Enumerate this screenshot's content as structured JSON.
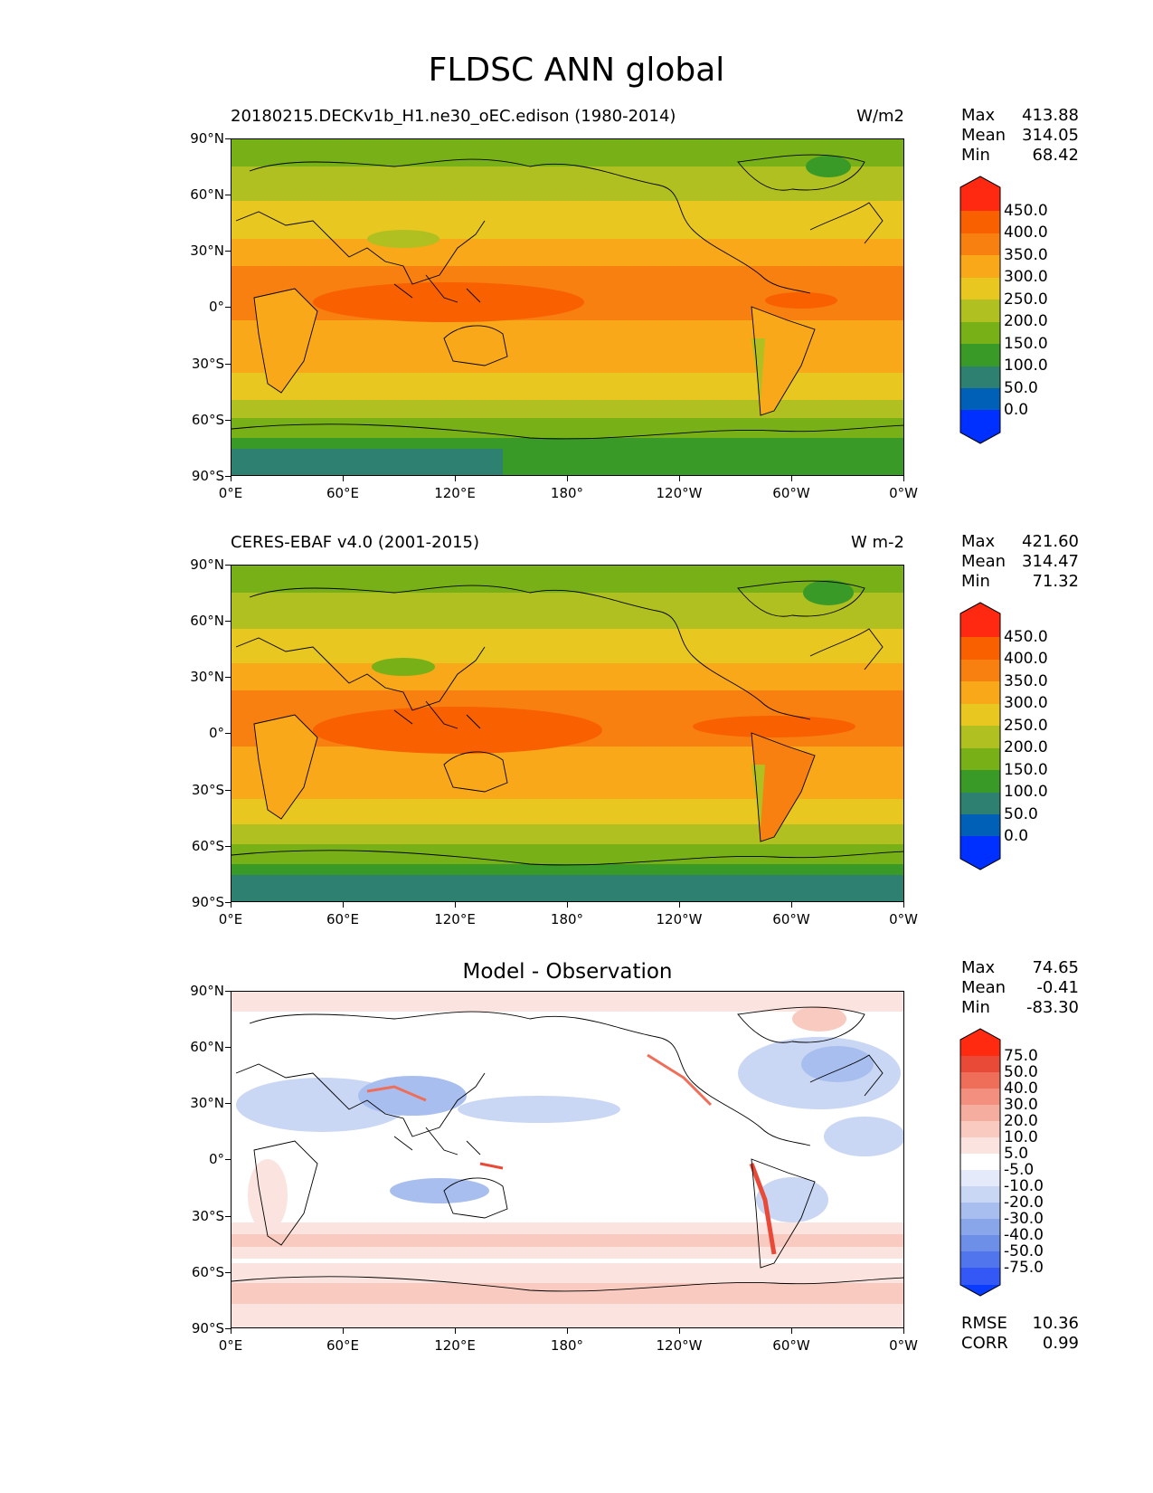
{
  "figure": {
    "title": "FLDSC ANN global"
  },
  "axes": {
    "y_ticks": [
      "90°N",
      "60°N",
      "30°N",
      "0°",
      "30°S",
      "60°S",
      "90°S"
    ],
    "x_ticks": [
      "0°E",
      "60°E",
      "120°E",
      "180°",
      "120°W",
      "60°W",
      "0°W"
    ]
  },
  "panels": [
    {
      "id": "model",
      "title_left": "20180215.DECKv1b_H1.ne30_oEC.edison (1980-2014)",
      "title_right": "W/m2",
      "stats": [
        {
          "label": "Max",
          "value": "413.88"
        },
        {
          "label": "Mean",
          "value": "314.05"
        },
        {
          "label": "Min",
          "value": "68.42"
        }
      ],
      "colorbar_labels": [
        "450.0",
        "400.0",
        "350.0",
        "300.0",
        "250.0",
        "200.0",
        "150.0",
        "100.0",
        "50.0",
        "0.0"
      ]
    },
    {
      "id": "obs",
      "title_left": "CERES-EBAF v4.0 (2001-2015)",
      "title_right": "W m-2",
      "stats": [
        {
          "label": "Max",
          "value": "421.60"
        },
        {
          "label": "Mean",
          "value": "314.47"
        },
        {
          "label": "Min",
          "value": "71.32"
        }
      ],
      "colorbar_labels": [
        "450.0",
        "400.0",
        "350.0",
        "300.0",
        "250.0",
        "200.0",
        "150.0",
        "100.0",
        "50.0",
        "0.0"
      ]
    },
    {
      "id": "diff",
      "title_center": "Model - Observation",
      "stats": [
        {
          "label": "Max",
          "value": "74.65"
        },
        {
          "label": "Mean",
          "value": "-0.41"
        },
        {
          "label": "Min",
          "value": "-83.30"
        }
      ],
      "colorbar_labels": [
        "75.0",
        "50.0",
        "40.0",
        "30.0",
        "20.0",
        "10.0",
        "5.0",
        "-5.0",
        "-10.0",
        "-20.0",
        "-30.0",
        "-40.0",
        "-50.0",
        "-75.0"
      ],
      "metrics": [
        {
          "label": "RMSE",
          "value": "10.36"
        },
        {
          "label": "CORR",
          "value": "0.99"
        }
      ]
    }
  ],
  "colors": {
    "abs_scale": [
      "#0030ff",
      "#0060b8",
      "#2e8070",
      "#3a9a28",
      "#78b018",
      "#b0c020",
      "#e8c820",
      "#f8a818",
      "#f88010",
      "#f86000",
      "#ff2810"
    ],
    "diff_scale": [
      "#0a3cff",
      "#3358f5",
      "#5075ec",
      "#6d8fe8",
      "#8aa6ea",
      "#a8beef",
      "#c9d6f4",
      "#e4eafa",
      "#ffffff",
      "#fbe4df",
      "#f8cac0",
      "#f5ad9f",
      "#f28f7e",
      "#ee6e5a",
      "#e94a38",
      "#ff2a10"
    ]
  }
}
